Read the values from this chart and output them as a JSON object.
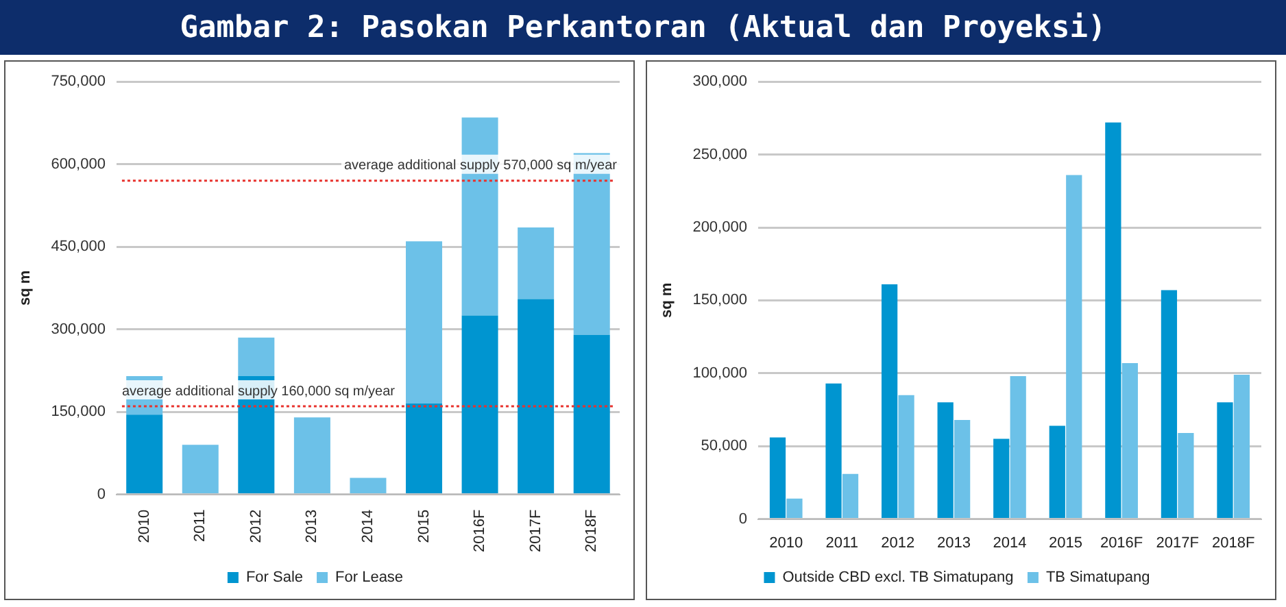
{
  "chart_data": [
    {
      "type": "bar",
      "title": "Gambar 2: Pasokan Perkantoran (Aktual dan Proyeksi)",
      "ylabel": "sq m",
      "categories": [
        "2010",
        "2011",
        "2012",
        "2013",
        "2014",
        "2015",
        "2016F",
        "2017F",
        "2018F"
      ],
      "stacked": true,
      "series": [
        {
          "name": "For Sale",
          "color": "#0095d0",
          "values": [
            145000,
            0,
            215000,
            0,
            0,
            165000,
            325000,
            355000,
            290000
          ]
        },
        {
          "name": "For Lease",
          "color": "#6cc1e8",
          "values": [
            70000,
            90000,
            70000,
            140000,
            30000,
            295000,
            360000,
            130000,
            330000
          ]
        }
      ],
      "ylim": [
        0,
        750000
      ],
      "yticks": [
        {
          "value": 0,
          "label": "0"
        },
        {
          "value": 150000,
          "label": "150,000"
        },
        {
          "value": 300000,
          "label": "300,000"
        },
        {
          "value": 450000,
          "label": "450,000"
        },
        {
          "value": 600000,
          "label": "600,000"
        },
        {
          "value": 750000,
          "label": "750,000"
        }
      ],
      "ref_lines": [
        {
          "axis": "y",
          "value": 160000,
          "label": "average additional supply 160,000 sq m/year",
          "color": "#e8322d",
          "line_style": "dotted"
        },
        {
          "axis": "y",
          "value": 570000,
          "label": "average additional supply 570,000 sq m/year",
          "color": "#e8322d",
          "line_style": "dotted"
        }
      ],
      "grid": "y",
      "legend": "bottom"
    },
    {
      "type": "bar",
      "ylabel": "sq m",
      "categories": [
        "2010",
        "2011",
        "2012",
        "2013",
        "2014",
        "2015",
        "2016F",
        "2017F",
        "2018F"
      ],
      "series": [
        {
          "name": "Outside CBD excl. TB Simatupang",
          "color": "#0095d0",
          "values": [
            56000,
            93000,
            161000,
            80000,
            55000,
            64000,
            272000,
            157000,
            80000
          ]
        },
        {
          "name": "TB Simatupang",
          "color": "#6cc1e8",
          "values": [
            14000,
            31000,
            85000,
            68000,
            98000,
            236000,
            107000,
            59000,
            99000
          ]
        }
      ],
      "ylim": [
        0,
        300000
      ],
      "yticks": [
        {
          "value": 0,
          "label": "0"
        },
        {
          "value": 50000,
          "label": "50,000"
        },
        {
          "value": 100000,
          "label": "100,000"
        },
        {
          "value": 150000,
          "label": "150,000"
        },
        {
          "value": 200000,
          "label": "200,000"
        },
        {
          "value": 250000,
          "label": "250,000"
        },
        {
          "value": 300000,
          "label": "300,000"
        }
      ],
      "grid": "y",
      "legend": "bottom"
    }
  ]
}
